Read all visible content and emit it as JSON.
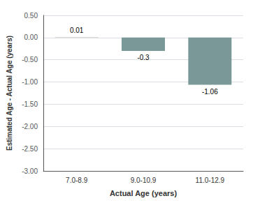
{
  "chart_data": {
    "type": "bar",
    "categories": [
      "7.0-8.9",
      "9.0-10.9",
      "11.0-12.9"
    ],
    "values": [
      0.01,
      -0.3,
      -1.06
    ],
    "colors": [
      "#b8b8b0",
      "#7a9898",
      "#7a9898"
    ],
    "xlabel": "Actual Age (years)",
    "ylabel": "Estimated Age - Actual Age (years)",
    "ylim": [
      -3.0,
      0.5
    ],
    "yticks": [
      {
        "value": 0.5,
        "label": "0.50"
      },
      {
        "value": 0,
        "label": "0.00"
      },
      {
        "value": -0.5,
        "label": "-0.50"
      },
      {
        "value": -1,
        "label": "-1.00"
      },
      {
        "value": -1.5,
        "label": "-1.50"
      },
      {
        "value": -2,
        "label": "-2.00"
      },
      {
        "value": -2.5,
        "label": "-2.50"
      },
      {
        "value": -3,
        "label": "-3.00"
      }
    ],
    "grid": true,
    "data_labels": true
  }
}
